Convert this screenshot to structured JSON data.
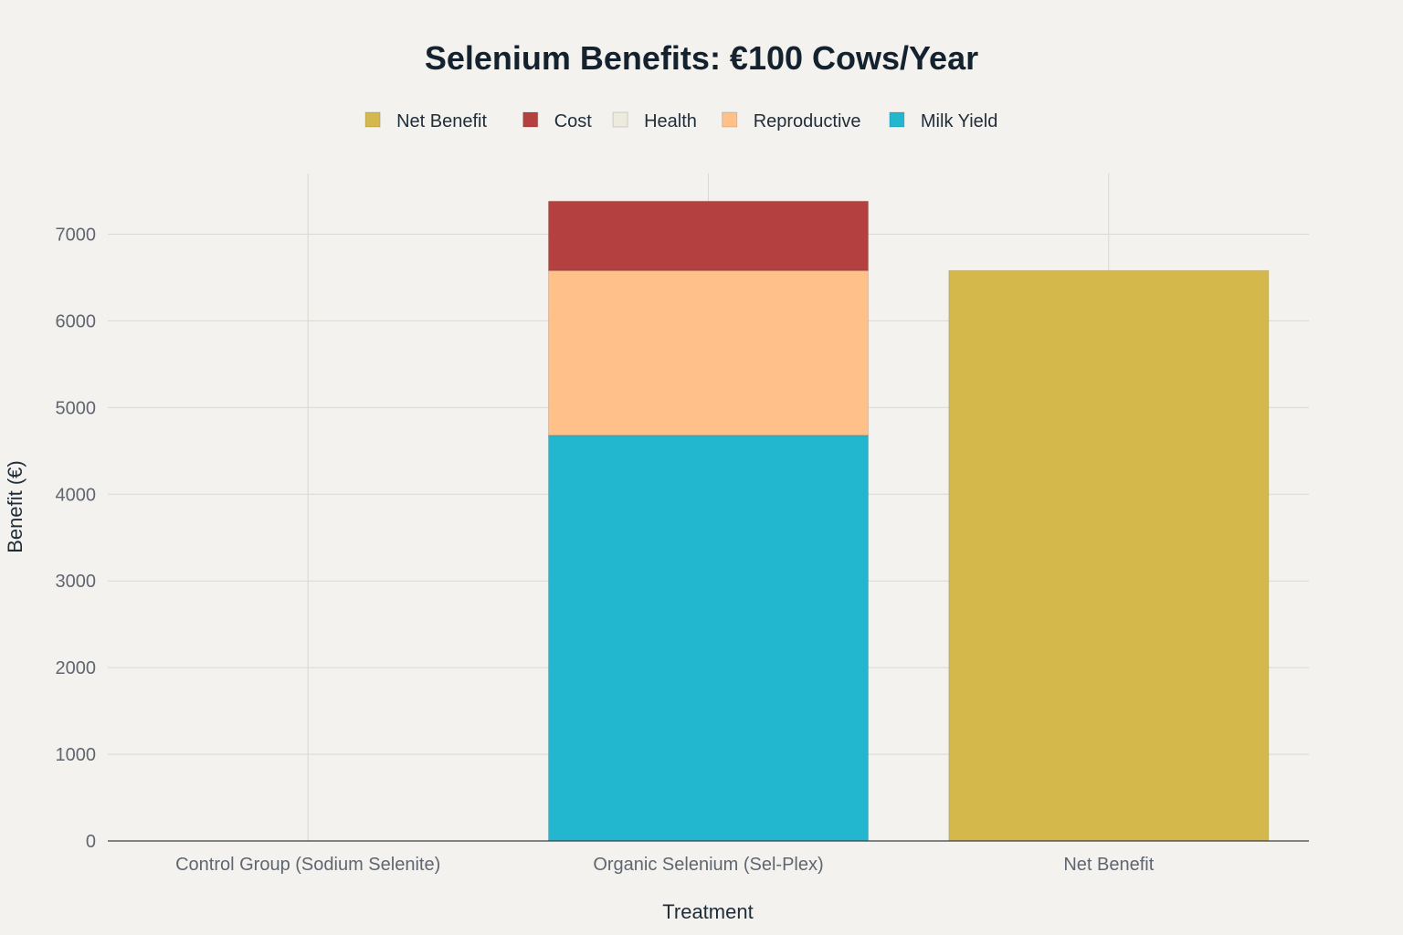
{
  "chart_data": {
    "type": "bar",
    "stacked": true,
    "title": "Selenium Benefits: €100 Cows/Year",
    "xlabel": "Treatment",
    "ylabel": "Benefit (€)",
    "categories": [
      "Control Group (Sodium Selenite)",
      "Organic Selenium (Sel-Plex)",
      "Net Benefit"
    ],
    "series": [
      {
        "name": "Milk Yield",
        "color": "#22b7cf",
        "values": [
          0,
          4680,
          0
        ]
      },
      {
        "name": "Reproductive",
        "color": "#ffc08a",
        "values": [
          0,
          1900,
          0
        ]
      },
      {
        "name": "Health",
        "color": "#ecebde",
        "values": [
          0,
          0,
          0
        ]
      },
      {
        "name": "Cost",
        "color": "#b54040",
        "values": [
          0,
          800,
          0
        ]
      },
      {
        "name": "Net Benefit",
        "color": "#d4b84c",
        "values": [
          0,
          0,
          6580
        ]
      }
    ],
    "legend_order": [
      "Net Benefit",
      "Cost",
      "Health",
      "Reproductive",
      "Milk Yield"
    ],
    "ylim": [
      0,
      7700
    ],
    "yticks": [
      0,
      1000,
      2000,
      3000,
      4000,
      5000,
      6000,
      7000
    ],
    "grid": true,
    "legend_position": "top-center"
  }
}
